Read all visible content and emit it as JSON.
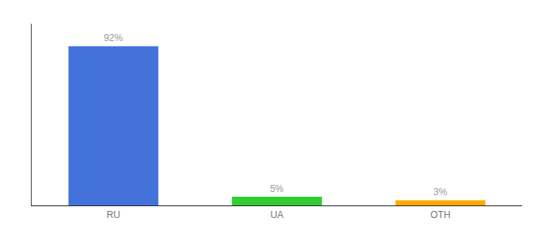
{
  "chart_data": {
    "type": "bar",
    "categories": [
      "RU",
      "UA",
      "OTH"
    ],
    "values": [
      92,
      5,
      3
    ],
    "value_labels": [
      "92%",
      "5%",
      "3%"
    ],
    "data_labels": true,
    "colors": [
      "#4472db",
      "#33cc33",
      "#ffaa00"
    ],
    "ylim": [
      0,
      105
    ],
    "tick_labels": "x",
    "grid": false
  }
}
